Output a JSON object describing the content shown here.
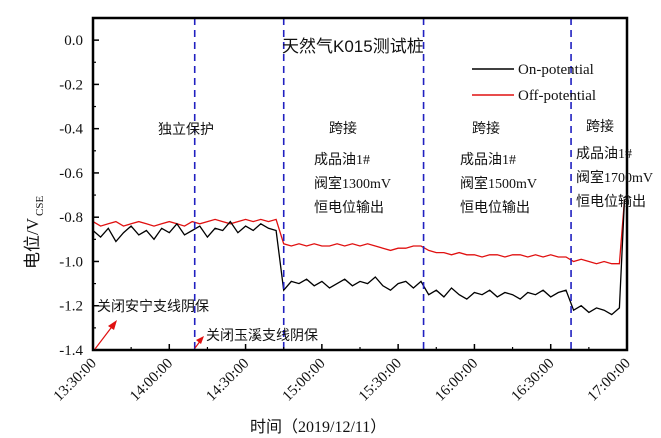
{
  "chart_data": {
    "type": "line",
    "title": "天然气K015测试桩",
    "xlabel": "时间（2019/12/11）",
    "ylabel": "电位/V",
    "ylabel_subscript": "CSE",
    "ylim": [
      -1.4,
      0.1
    ],
    "xlim": [
      "13:30",
      "17:00"
    ],
    "yticks": [
      "0.0",
      "-0.2",
      "-0.4",
      "-0.6",
      "-0.8",
      "-1.0",
      "-1.2",
      "-1.4"
    ],
    "xticks": [
      "13:30:00",
      "14:00:00",
      "14:30:00",
      "15:00:00",
      "15:30:00",
      "16:00:00",
      "16:30:00",
      "17:00:00"
    ],
    "legend_position": "top-right",
    "grid": false,
    "x": [
      "13:30",
      "13:33",
      "13:36",
      "13:39",
      "13:42",
      "13:45",
      "13:48",
      "13:51",
      "13:54",
      "13:57",
      "14:00",
      "14:03",
      "14:06",
      "14:09",
      "14:12",
      "14:15",
      "14:18",
      "14:21",
      "14:24",
      "14:27",
      "14:30",
      "14:33",
      "14:36",
      "14:39",
      "14:42",
      "14:45",
      "14:48",
      "14:51",
      "14:54",
      "14:57",
      "15:00",
      "15:03",
      "15:06",
      "15:09",
      "15:12",
      "15:15",
      "15:18",
      "15:21",
      "15:24",
      "15:27",
      "15:30",
      "15:33",
      "15:36",
      "15:39",
      "15:42",
      "15:45",
      "15:48",
      "15:51",
      "15:54",
      "15:57",
      "16:00",
      "16:03",
      "16:06",
      "16:09",
      "16:12",
      "16:15",
      "16:18",
      "16:21",
      "16:24",
      "16:27",
      "16:30",
      "16:33",
      "16:36",
      "16:39",
      "16:42",
      "16:45",
      "16:48",
      "16:51",
      "16:54",
      "16:57",
      "16:59"
    ],
    "series": [
      {
        "name": "On-potential",
        "color": "#000000",
        "values": [
          -0.86,
          -0.89,
          -0.85,
          -0.91,
          -0.87,
          -0.84,
          -0.88,
          -0.86,
          -0.9,
          -0.85,
          -0.87,
          -0.83,
          -0.88,
          -0.86,
          -0.84,
          -0.89,
          -0.85,
          -0.86,
          -0.82,
          -0.87,
          -0.84,
          -0.86,
          -0.83,
          -0.85,
          -0.86,
          -1.13,
          -1.09,
          -1.1,
          -1.08,
          -1.11,
          -1.09,
          -1.12,
          -1.1,
          -1.08,
          -1.11,
          -1.09,
          -1.1,
          -1.07,
          -1.11,
          -1.13,
          -1.1,
          -1.09,
          -1.12,
          -1.09,
          -1.15,
          -1.13,
          -1.16,
          -1.12,
          -1.15,
          -1.17,
          -1.14,
          -1.15,
          -1.13,
          -1.16,
          -1.14,
          -1.15,
          -1.17,
          -1.14,
          -1.15,
          -1.13,
          -1.16,
          -1.14,
          -1.13,
          -1.22,
          -1.2,
          -1.23,
          -1.21,
          -1.22,
          -1.24,
          -1.21,
          -0.72
        ]
      },
      {
        "name": "Off-potential",
        "color": "#e01010",
        "values": [
          -0.82,
          -0.84,
          -0.83,
          -0.82,
          -0.84,
          -0.83,
          -0.82,
          -0.83,
          -0.84,
          -0.83,
          -0.82,
          -0.83,
          -0.84,
          -0.82,
          -0.83,
          -0.82,
          -0.81,
          -0.82,
          -0.83,
          -0.82,
          -0.81,
          -0.82,
          -0.81,
          -0.82,
          -0.81,
          -0.92,
          -0.93,
          -0.92,
          -0.93,
          -0.92,
          -0.93,
          -0.93,
          -0.92,
          -0.93,
          -0.92,
          -0.93,
          -0.92,
          -0.93,
          -0.94,
          -0.95,
          -0.94,
          -0.94,
          -0.93,
          -0.93,
          -0.95,
          -0.96,
          -0.96,
          -0.97,
          -0.96,
          -0.97,
          -0.97,
          -0.98,
          -0.97,
          -0.97,
          -0.98,
          -0.97,
          -0.97,
          -0.98,
          -0.97,
          -0.98,
          -0.97,
          -0.98,
          -0.98,
          -1.0,
          -0.99,
          -1.0,
          -1.01,
          -1.0,
          -1.01,
          -1.01,
          -0.72
        ]
      }
    ],
    "vlines": {
      "times": [
        "14:10",
        "14:45",
        "15:40",
        "16:38"
      ],
      "color": "#2020c0",
      "style": "dashed"
    },
    "annotations": {
      "phase1": "独立保护",
      "phase2": {
        "title": "跨接",
        "lines": [
          "成品油1#",
          "阀室1300mV",
          "恒电位输出"
        ]
      },
      "phase3": {
        "title": "跨接",
        "lines": [
          "成品油1#",
          "阀室1500mV",
          "恒电位输出"
        ]
      },
      "phase4": {
        "title": "跨接",
        "lines": [
          "成品油1#",
          "阀室1700mV",
          "恒电位输出"
        ]
      },
      "event1": "关闭安宁支线阴保",
      "event2": "关闭玉溪支线阴保",
      "arrow_color": "#e01010"
    }
  }
}
